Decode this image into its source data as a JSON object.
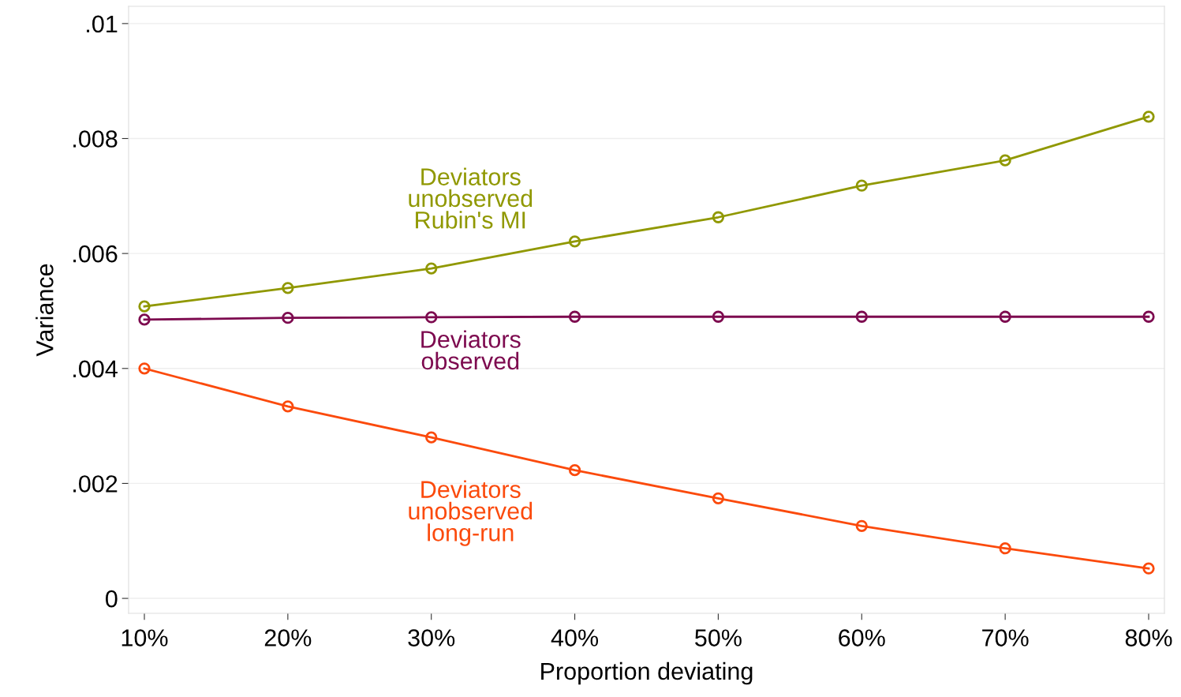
{
  "chart_data": {
    "type": "line",
    "xlabel": "Proportion deviating",
    "ylabel": "Variance",
    "x": [
      10,
      20,
      30,
      40,
      50,
      60,
      70,
      80
    ],
    "xlim": [
      8.9,
      81.1
    ],
    "xticks": [
      {
        "value": 10,
        "label": "10%"
      },
      {
        "value": 20,
        "label": "20%"
      },
      {
        "value": 30,
        "label": "30%"
      },
      {
        "value": 40,
        "label": "40%"
      },
      {
        "value": 50,
        "label": "50%"
      },
      {
        "value": 60,
        "label": "60%"
      },
      {
        "value": 70,
        "label": "70%"
      },
      {
        "value": 80,
        "label": "80%"
      }
    ],
    "ylim": [
      -0.00026,
      0.0103
    ],
    "yticks": [
      {
        "value": 0,
        "label": "0"
      },
      {
        "value": 0.002,
        "label": ".002"
      },
      {
        "value": 0.004,
        "label": ".004"
      },
      {
        "value": 0.006,
        "label": ".006"
      },
      {
        "value": 0.008,
        "label": ".008"
      },
      {
        "value": 0.01,
        "label": ".01"
      }
    ],
    "grid": "y",
    "legend": false,
    "marker": "circle",
    "line_style": "solid",
    "series": [
      {
        "name": "Deviators\nunobserved\nRubin's MI",
        "color": "#909800",
        "values": [
          0.00508,
          0.0054,
          0.00574,
          0.00621,
          0.00663,
          0.00718,
          0.00762,
          0.00838
        ]
      },
      {
        "name": "Deviators\nobserved",
        "color": "#7d0a4f",
        "values": [
          0.00485,
          0.00488,
          0.00489,
          0.0049,
          0.0049,
          0.0049,
          0.0049,
          0.0049
        ]
      },
      {
        "name": "Deviators\nunobserved\nlong-run",
        "color": "#fb4a0c",
        "values": [
          0.004,
          0.00334,
          0.0028,
          0.00223,
          0.00174,
          0.00126,
          0.00087,
          0.00052
        ]
      }
    ]
  }
}
